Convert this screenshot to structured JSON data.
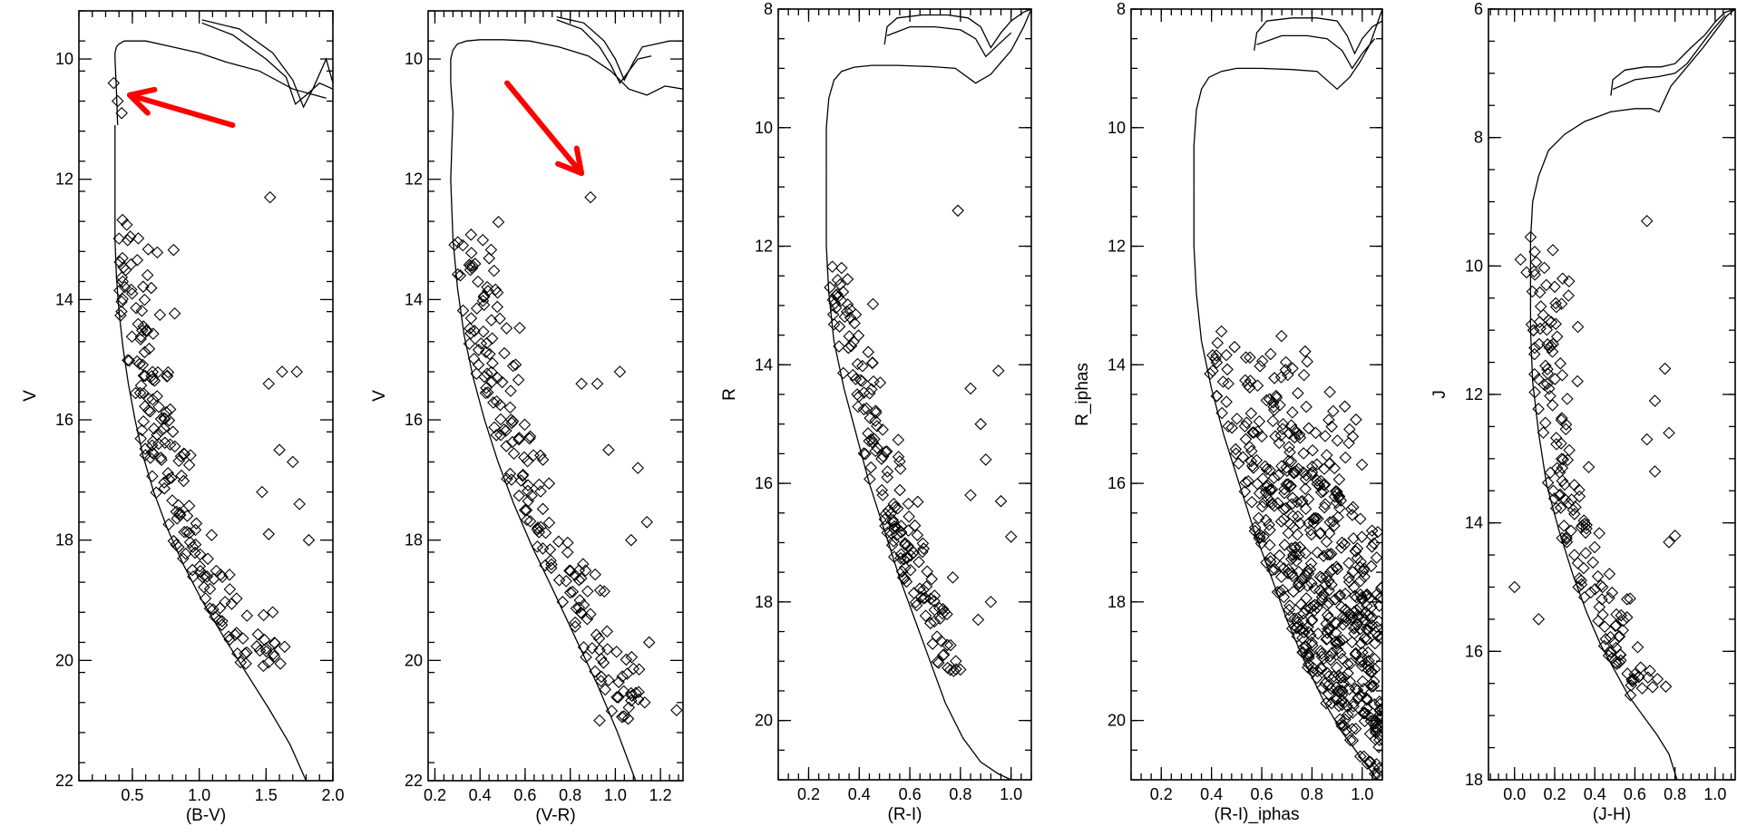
{
  "colors": {
    "axes": "#000000",
    "background": "#ffffff",
    "annotation_arrow": "#ff0000"
  },
  "chart_data": [
    {
      "type": "scatter",
      "xlabel": "(B-V)",
      "ylabel": "V",
      "xlim": [
        0.1,
        2.0
      ],
      "ylim": [
        22,
        9.2
      ],
      "y_inverted": true,
      "grid": false,
      "xticks": [
        "0.5",
        "1.0",
        "1.5",
        "2.0"
      ],
      "xtick_values": [
        0.5,
        1.0,
        1.5,
        2.0
      ],
      "yticks": [
        "10",
        "12",
        "14",
        "16",
        "18",
        "20",
        "22"
      ],
      "ytick_values": [
        10,
        12,
        14,
        16,
        18,
        20,
        22
      ],
      "annotations": [
        {
          "type": "arrow",
          "from": [
            1.25,
            11.1
          ],
          "to": [
            0.48,
            10.6
          ],
          "color": "#ff0000"
        }
      ],
      "isochrone": [
        {
          "x": [
            0.39,
            0.38,
            0.37,
            0.37,
            0.38,
            0.4,
            0.44,
            0.5,
            0.6,
            0.8,
            1.0,
            1.2,
            1.45,
            1.7,
            1.95
          ],
          "y": [
            11.1,
            10.5,
            10.0,
            9.9,
            9.8,
            9.75,
            9.7,
            9.7,
            9.7,
            9.8,
            9.9,
            10.05,
            10.2,
            10.5,
            10.65
          ]
        },
        {
          "x": [
            0.37,
            0.37,
            0.37,
            0.38,
            0.4,
            0.43,
            0.47,
            0.52,
            0.58,
            0.66,
            0.76,
            0.88,
            1.02,
            1.18,
            1.35,
            1.52,
            1.68,
            1.8
          ],
          "y": [
            11.1,
            12.0,
            13.0,
            13.6,
            14.2,
            14.8,
            15.4,
            16.0,
            16.6,
            17.2,
            17.8,
            18.4,
            19.0,
            19.6,
            20.2,
            20.8,
            21.4,
            22.0
          ]
        },
        {
          "x": [
            1.02,
            1.3,
            1.55,
            1.7,
            1.78,
            1.85,
            1.95,
            2.0
          ],
          "y": [
            9.35,
            9.5,
            9.9,
            10.35,
            10.8,
            10.5,
            10.0,
            10.4
          ]
        },
        {
          "x": [
            1.02,
            1.25,
            1.5,
            1.65,
            1.72,
            1.8,
            1.9,
            2.0
          ],
          "y": [
            9.4,
            9.6,
            10.0,
            10.3,
            10.75,
            10.6,
            10.4,
            10.5
          ]
        }
      ]
    },
    {
      "type": "scatter",
      "xlabel": "(V-R)",
      "ylabel": "V",
      "xlim": [
        0.17,
        1.3
      ],
      "ylim": [
        22,
        9.2
      ],
      "y_inverted": true,
      "grid": false,
      "xticks": [
        "0.2",
        "0.4",
        "0.6",
        "0.8",
        "1.0",
        "1.2"
      ],
      "xtick_values": [
        0.2,
        0.4,
        0.6,
        0.8,
        1.0,
        1.2
      ],
      "yticks": [
        "10",
        "12",
        "14",
        "16",
        "18",
        "20",
        "22"
      ],
      "ytick_values": [
        10,
        12,
        14,
        16,
        18,
        20,
        22
      ],
      "annotations": [
        {
          "type": "arrow",
          "from": [
            0.52,
            10.4
          ],
          "to": [
            0.85,
            11.9
          ],
          "color": "#ff0000"
        }
      ],
      "isochrone": [
        {
          "x": [
            0.28,
            0.27,
            0.27,
            0.28,
            0.3,
            0.34,
            0.4,
            0.5,
            0.62,
            0.75,
            0.88,
            0.98,
            1.06,
            1.14,
            1.22,
            1.3
          ],
          "y": [
            10.9,
            10.4,
            10.0,
            9.85,
            9.75,
            9.7,
            9.68,
            9.68,
            9.7,
            9.8,
            9.95,
            10.2,
            10.5,
            10.6,
            10.45,
            10.5
          ]
        },
        {
          "x": [
            0.28,
            0.27,
            0.28,
            0.3,
            0.33,
            0.37,
            0.42,
            0.48,
            0.55,
            0.63,
            0.72,
            0.82,
            0.92,
            1.01,
            1.09
          ],
          "y": [
            10.9,
            12.0,
            13.0,
            13.8,
            14.6,
            15.3,
            16.0,
            16.7,
            17.4,
            18.1,
            18.8,
            19.6,
            20.4,
            21.2,
            22.0
          ]
        },
        {
          "x": [
            0.74,
            0.86,
            0.95,
            1.0,
            1.04,
            1.08,
            1.12,
            1.18,
            1.24,
            1.3
          ],
          "y": [
            9.3,
            9.4,
            9.7,
            10.0,
            10.35,
            10.05,
            9.8,
            9.75,
            9.7,
            9.7
          ]
        },
        {
          "x": [
            0.74,
            0.85,
            0.93,
            0.98,
            1.02,
            1.06,
            1.1,
            1.16
          ],
          "y": [
            9.35,
            9.5,
            9.8,
            10.1,
            10.4,
            10.2,
            10.0,
            9.95
          ]
        }
      ]
    },
    {
      "type": "scatter",
      "xlabel": "(R-I)",
      "ylabel": "R",
      "xlim": [
        0.08,
        1.08
      ],
      "ylim": [
        21,
        8.0
      ],
      "y_inverted": true,
      "grid": false,
      "xticks": [
        "0.2",
        "0.4",
        "0.6",
        "0.8",
        "1.0"
      ],
      "xtick_values": [
        0.2,
        0.4,
        0.6,
        0.8,
        1.0
      ],
      "yticks": [
        "8",
        "10",
        "12",
        "14",
        "16",
        "18",
        "20"
      ],
      "ytick_values": [
        8,
        10,
        12,
        14,
        16,
        18,
        20
      ],
      "annotations": [],
      "isochrone": [
        {
          "x": [
            0.27,
            0.27,
            0.28,
            0.3,
            0.33,
            0.38,
            0.45,
            0.55,
            0.68,
            0.78,
            0.86,
            0.92,
            0.96,
            1.0,
            1.05,
            1.08
          ],
          "y": [
            10.8,
            10.0,
            9.5,
            9.2,
            9.05,
            8.98,
            8.95,
            8.95,
            8.97,
            9.0,
            9.25,
            9.1,
            8.9,
            8.7,
            8.3,
            8.0
          ]
        },
        {
          "x": [
            0.27,
            0.27,
            0.28,
            0.3,
            0.34,
            0.39,
            0.44,
            0.5,
            0.56,
            0.62,
            0.68,
            0.74,
            0.81,
            0.88,
            0.95,
            1.0
          ],
          "y": [
            10.8,
            12.0,
            12.8,
            13.6,
            14.4,
            15.2,
            16.0,
            16.8,
            17.6,
            18.3,
            19.0,
            19.7,
            20.3,
            20.7,
            20.9,
            21.0
          ]
        },
        {
          "x": [
            0.5,
            0.51,
            0.55,
            0.65,
            0.75,
            0.83,
            0.88,
            0.92,
            0.96,
            1.0,
            1.05,
            1.08
          ],
          "y": [
            8.6,
            8.3,
            8.15,
            8.1,
            8.1,
            8.15,
            8.3,
            8.65,
            8.4,
            8.2,
            8.05,
            8.0
          ]
        },
        {
          "x": [
            0.51,
            0.6,
            0.7,
            0.8,
            0.86,
            0.9,
            0.95,
            1.0
          ],
          "y": [
            8.45,
            8.3,
            8.3,
            8.35,
            8.5,
            8.8,
            8.6,
            8.4
          ]
        }
      ]
    },
    {
      "type": "scatter",
      "xlabel": "(R-I)_iphas",
      "ylabel": "R_iphas",
      "xlim": [
        0.08,
        1.08
      ],
      "ylim": [
        21,
        8.0
      ],
      "y_inverted": true,
      "grid": false,
      "xticks": [
        "0.2",
        "0.4",
        "0.6",
        "0.8",
        "1.0"
      ],
      "xtick_values": [
        0.2,
        0.4,
        0.6,
        0.8,
        1.0
      ],
      "yticks": [
        "8",
        "10",
        "12",
        "14",
        "16",
        "18",
        "20"
      ],
      "ytick_values": [
        8,
        10,
        12,
        14,
        16,
        18,
        20
      ],
      "annotations": [],
      "isochrone": [
        {
          "x": [
            0.33,
            0.33,
            0.34,
            0.36,
            0.39,
            0.44,
            0.5,
            0.6,
            0.72,
            0.82,
            0.9,
            0.95,
            0.99,
            1.03,
            1.08
          ],
          "y": [
            11.0,
            10.3,
            9.7,
            9.35,
            9.15,
            9.05,
            9.0,
            9.0,
            9.02,
            9.05,
            9.35,
            9.15,
            8.9,
            8.6,
            8.0
          ]
        },
        {
          "x": [
            0.33,
            0.33,
            0.34,
            0.36,
            0.4,
            0.45,
            0.51,
            0.57,
            0.64,
            0.7,
            0.77,
            0.85,
            0.92,
            0.99,
            1.06
          ],
          "y": [
            11.0,
            12.0,
            12.8,
            13.6,
            14.4,
            15.2,
            16.0,
            16.8,
            17.6,
            18.3,
            19.0,
            19.7,
            20.2,
            20.6,
            21.0
          ]
        },
        {
          "x": [
            0.57,
            0.58,
            0.62,
            0.72,
            0.82,
            0.9,
            0.94,
            0.97,
            1.0,
            1.04,
            1.08
          ],
          "y": [
            8.7,
            8.4,
            8.2,
            8.15,
            8.15,
            8.2,
            8.45,
            8.75,
            8.5,
            8.3,
            8.2
          ]
        },
        {
          "x": [
            0.58,
            0.68,
            0.78,
            0.86,
            0.92,
            0.96,
            1.0,
            1.05
          ],
          "y": [
            8.6,
            8.45,
            8.45,
            8.5,
            8.7,
            9.0,
            8.75,
            8.5
          ]
        }
      ]
    },
    {
      "type": "scatter",
      "xlabel": "(J-H)",
      "ylabel": "J",
      "xlim": [
        -0.13,
        1.1
      ],
      "ylim": [
        18,
        6.0
      ],
      "y_inverted": true,
      "grid": false,
      "xticks": [
        "0.0",
        "0.2",
        "0.4",
        "0.6",
        "0.8",
        "1.0"
      ],
      "xtick_values": [
        0.0,
        0.2,
        0.4,
        0.6,
        0.8,
        1.0
      ],
      "yticks": [
        "6",
        "8",
        "10",
        "12",
        "14",
        "16",
        "18"
      ],
      "ytick_values": [
        6,
        8,
        10,
        12,
        14,
        16,
        18
      ],
      "annotations": [],
      "isochrone": [
        {
          "x": [
            0.08,
            0.08,
            0.09,
            0.12,
            0.17,
            0.25,
            0.35,
            0.48,
            0.6,
            0.68,
            0.72,
            0.78,
            0.86,
            0.94,
            1.0,
            1.06,
            1.1
          ],
          "y": [
            10.2,
            9.6,
            9.0,
            8.6,
            8.2,
            7.95,
            7.75,
            7.6,
            7.55,
            7.55,
            7.6,
            7.2,
            6.9,
            6.6,
            6.35,
            6.1,
            6.0
          ]
        },
        {
          "x": [
            0.08,
            0.08,
            0.09,
            0.12,
            0.16,
            0.22,
            0.29,
            0.36,
            0.43,
            0.5,
            0.57,
            0.64,
            0.71,
            0.77,
            0.81
          ],
          "y": [
            10.2,
            11.0,
            11.8,
            12.6,
            13.4,
            14.1,
            14.8,
            15.4,
            15.9,
            16.3,
            16.7,
            17.0,
            17.3,
            17.6,
            18.0
          ]
        },
        {
          "x": [
            0.48,
            0.49,
            0.55,
            0.65,
            0.73,
            0.8,
            0.88,
            0.95,
            1.0,
            1.05,
            1.1
          ],
          "y": [
            7.35,
            7.1,
            6.95,
            6.9,
            6.9,
            6.85,
            6.6,
            6.4,
            6.2,
            6.05,
            6.0
          ]
        },
        {
          "x": [
            0.49,
            0.6,
            0.72,
            0.8,
            0.86,
            0.92,
            0.98,
            1.05
          ],
          "y": [
            7.25,
            7.1,
            7.05,
            7.0,
            6.85,
            6.6,
            6.35,
            6.1
          ]
        }
      ]
    }
  ]
}
